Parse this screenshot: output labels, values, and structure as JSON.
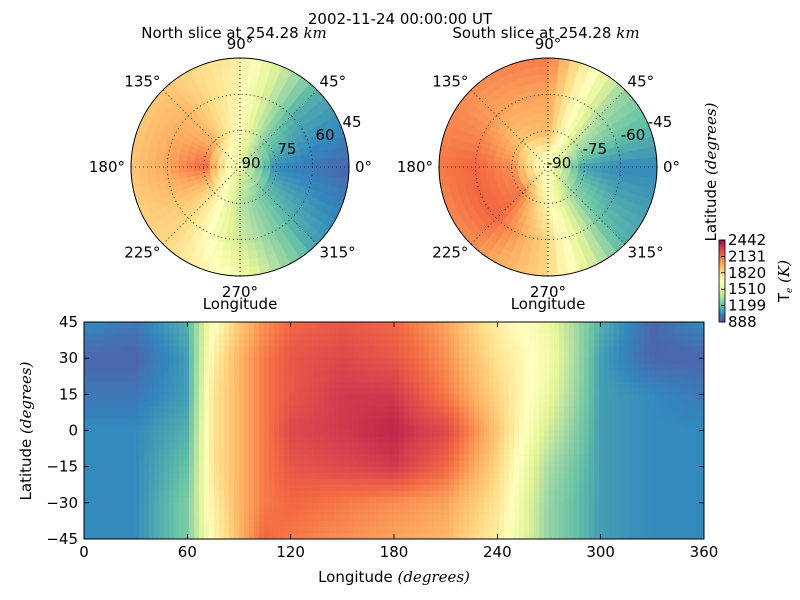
{
  "figure_title": "2002-11-24 00:00:00 UT",
  "colors": {
    "palette": "Spectral_r",
    "stops": [
      "#5e4fa2",
      "#3288bd",
      "#66c2a5",
      "#abdda4",
      "#e6f598",
      "#ffffbf",
      "#fee08b",
      "#fdae61",
      "#f46d43",
      "#d53e4f",
      "#9e0142"
    ]
  },
  "colorbar": {
    "label_prefix": "T",
    "label_sub": "e",
    "label_unit": "(K)",
    "ticks": [
      "2442",
      "2131",
      "1820",
      "1510",
      "1199",
      "888"
    ],
    "range": [
      888,
      2442
    ]
  },
  "north": {
    "title_prefix": "North slice at 254.28",
    "title_unit": "km",
    "angle_labels": [
      "90°",
      "45°",
      "0°",
      "315°",
      "270°",
      "225°",
      "180°",
      "135°"
    ],
    "radial_labels": [
      "45",
      "60",
      "75",
      "90"
    ],
    "xlabel": "Longitude"
  },
  "south": {
    "title_prefix": "South slice at 254.28",
    "title_unit": "km",
    "angle_labels": [
      "90°",
      "45°",
      "0°",
      "315°",
      "270°",
      "225°",
      "180°",
      "135°"
    ],
    "radial_labels": [
      "-45",
      "-60",
      "-75",
      "-90"
    ],
    "xlabel": "Longitude",
    "ylabel_prefix": "Latitude",
    "ylabel_unit": "(degrees)"
  },
  "main": {
    "xlabel_prefix": "Longitude",
    "xlabel_unit": "(degrees)",
    "ylabel_prefix": "Latitude",
    "ylabel_unit": "(degrees)",
    "xticks": [
      "0",
      "60",
      "120",
      "180",
      "240",
      "300",
      "360"
    ],
    "yticks": [
      "45",
      "30",
      "15",
      "0",
      "−15",
      "−30",
      "−45"
    ]
  },
  "chart_data": [
    {
      "type": "heatmap",
      "name": "equatorial map",
      "x": [
        0,
        30,
        60,
        75,
        90,
        105,
        120,
        150,
        180,
        210,
        240,
        270,
        300,
        330,
        360
      ],
      "y": [
        45,
        30,
        15,
        0,
        -15,
        -30,
        -45
      ],
      "xlim": [
        0,
        360
      ],
      "ylim": [
        -45,
        45
      ],
      "z": [
        [
          1050,
          1000,
          1150,
          1650,
          1900,
          2050,
          2150,
          2200,
          2150,
          2000,
          1750,
          1550,
          1150,
          950,
          1050
        ],
        [
          950,
          950,
          1100,
          1750,
          1950,
          2100,
          2200,
          2250,
          2200,
          2050,
          1800,
          1600,
          1100,
          950,
          950
        ],
        [
          1000,
          1000,
          1100,
          1800,
          1950,
          2100,
          2200,
          2300,
          2300,
          2100,
          1850,
          1550,
          1100,
          1050,
          1000
        ],
        [
          1050,
          1050,
          1150,
          1800,
          1950,
          2100,
          2250,
          2300,
          2350,
          2250,
          1900,
          1450,
          1100,
          1050,
          1050
        ],
        [
          1050,
          1050,
          1200,
          1800,
          1950,
          2100,
          2200,
          2250,
          2300,
          2150,
          1850,
          1350,
          1100,
          1050,
          1050
        ],
        [
          1050,
          1050,
          1250,
          1750,
          1950,
          2100,
          2150,
          2100,
          2050,
          2000,
          1800,
          1300,
          1100,
          1050,
          1050
        ],
        [
          1050,
          1050,
          1250,
          1700,
          1950,
          2150,
          2100,
          2050,
          2000,
          1950,
          1750,
          1300,
          1100,
          1050,
          1050
        ]
      ]
    },
    {
      "type": "heatmap",
      "name": "north polar slice",
      "longitude": [
        0,
        45,
        90,
        135,
        180,
        225,
        270,
        315
      ],
      "latitude": [
        45,
        60,
        75,
        90
      ],
      "z": [
        [
          950,
          1150,
          1750,
          1900,
          1900,
          1850,
          1600,
          1100
        ],
        [
          1000,
          1150,
          1700,
          1950,
          2000,
          1850,
          1450,
          1150
        ],
        [
          1050,
          1250,
          1650,
          1950,
          2150,
          1800,
          1400,
          1200
        ],
        [
          1500,
          1500,
          1500,
          1500,
          1500,
          1500,
          1500,
          1500
        ]
      ]
    },
    {
      "type": "heatmap",
      "name": "south polar slice",
      "longitude": [
        0,
        45,
        90,
        135,
        180,
        225,
        270,
        315
      ],
      "latitude": [
        -45,
        -60,
        -75,
        -90
      ],
      "z": [
        [
          1050,
          1300,
          2100,
          2050,
          2100,
          2050,
          1850,
          1150
        ],
        [
          1050,
          1350,
          2000,
          2000,
          2150,
          2150,
          1850,
          1200
        ],
        [
          1100,
          1450,
          1950,
          1900,
          2050,
          2100,
          1700,
          1300
        ],
        [
          1600,
          1600,
          1600,
          1600,
          1600,
          1600,
          1600,
          1600
        ]
      ]
    }
  ]
}
